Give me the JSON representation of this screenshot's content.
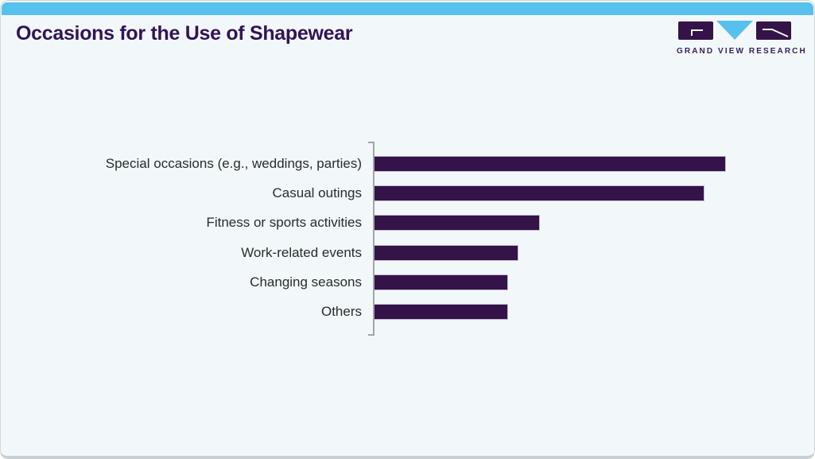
{
  "header": {
    "title": "Occasions for the Use of Shapewear"
  },
  "logo": {
    "brand": "GRAND VIEW RESEARCH"
  },
  "colors": {
    "accent_blue": "#57c1ee",
    "brand_purple": "#341348",
    "bar_purple": "#341348",
    "title_purple": "#321454",
    "label_text": "#2b2b2b",
    "axis_gray": "#9fa5a9",
    "card_background": "#f2f7fa"
  },
  "chart_data": {
    "type": "bar",
    "orientation": "horizontal",
    "title": "Occasions for the Use of Shapewear",
    "categories": [
      "Special occasions (e.g., weddings, parties)",
      "Casual outings",
      "Fitness or sports activities",
      "Work-related events",
      "Changing seasons",
      "Others"
    ],
    "values": [
      100,
      94,
      47,
      41,
      38,
      38
    ],
    "value_scale": "relative bar length, longest bar = 100 (no numeric axis or data labels shown)",
    "xlabel": "",
    "ylabel": "",
    "xlim": [
      0,
      100
    ],
    "grid": false,
    "legend": false,
    "bar_color": "#341348"
  }
}
